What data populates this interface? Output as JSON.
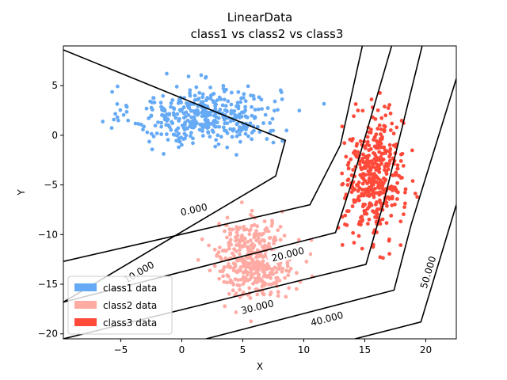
{
  "chart_data": {
    "type": "scatter",
    "title": "LinearData",
    "subtitle": "class1 vs  class2 vs  class3",
    "xlabel": "X",
    "ylabel": "Y",
    "xlim": [
      -9.7,
      22.5
    ],
    "ylim": [
      -20.5,
      9.0
    ],
    "xticks": [
      -5,
      0,
      5,
      10,
      15,
      20
    ],
    "yticks": [
      5,
      0,
      -5,
      -10,
      -15,
      -20
    ],
    "grid": false,
    "legend_position": "lower-left",
    "series": [
      {
        "name": "class1 data",
        "color": "#66aaf5",
        "center": [
          2.0,
          2.0
        ],
        "spread": [
          3.0,
          1.5
        ],
        "count": 420
      },
      {
        "name": "class2 data",
        "color": "#ffaaa3",
        "center": [
          6.0,
          -12.5
        ],
        "spread": [
          1.6,
          1.9
        ],
        "count": 420
      },
      {
        "name": "class3 data",
        "color": "#ff4a3a",
        "center": [
          15.8,
          -4.2
        ],
        "spread": [
          1.2,
          3.0
        ],
        "count": 420
      }
    ],
    "contours": [
      {
        "level": 0,
        "label": "0.000",
        "points": [
          [
            -9.7,
            -12.7
          ],
          [
            10.5,
            -7.0
          ],
          [
            13.0,
            -1.0
          ],
          [
            14.8,
            9.0
          ]
        ],
        "label_at": [
          1.0,
          -7.5
        ]
      },
      {
        "level": 10,
        "label": "10.000",
        "points": [
          [
            -9.7,
            8.6
          ],
          [
            8.5,
            -0.5
          ],
          [
            7.7,
            -4.1
          ],
          [
            -9.7,
            -16.8
          ]
        ],
        "label_at": [
          -3.5,
          -13.8
        ]
      },
      {
        "level": 20,
        "label": "20.000",
        "points": [
          [
            -9.7,
            -16.8
          ],
          [
            12.6,
            -9.8
          ],
          [
            14.0,
            -4.5
          ],
          [
            17.2,
            9.0
          ]
        ],
        "label_at": [
          8.7,
          -12.0
        ]
      },
      {
        "level": 30,
        "label": "30.000",
        "points": [
          [
            -9.7,
            -20.5
          ],
          [
            15.1,
            -13.0
          ],
          [
            16.5,
            -7.0
          ],
          [
            19.7,
            9.0
          ]
        ],
        "label_at": [
          6.2,
          -17.3
        ]
      },
      {
        "level": 40,
        "label": "40.000",
        "points": [
          [
            2.0,
            -20.5
          ],
          [
            17.4,
            -15.6
          ],
          [
            18.8,
            -9.0
          ],
          [
            22.5,
            5.7
          ]
        ],
        "label_at": [
          11.9,
          -18.5
        ]
      },
      {
        "level": 50,
        "label": "50.000",
        "points": [
          [
            14.2,
            -20.5
          ],
          [
            19.6,
            -18.8
          ],
          [
            22.5,
            -7.0
          ]
        ],
        "label_at": [
          20.2,
          -13.8
        ]
      }
    ]
  }
}
